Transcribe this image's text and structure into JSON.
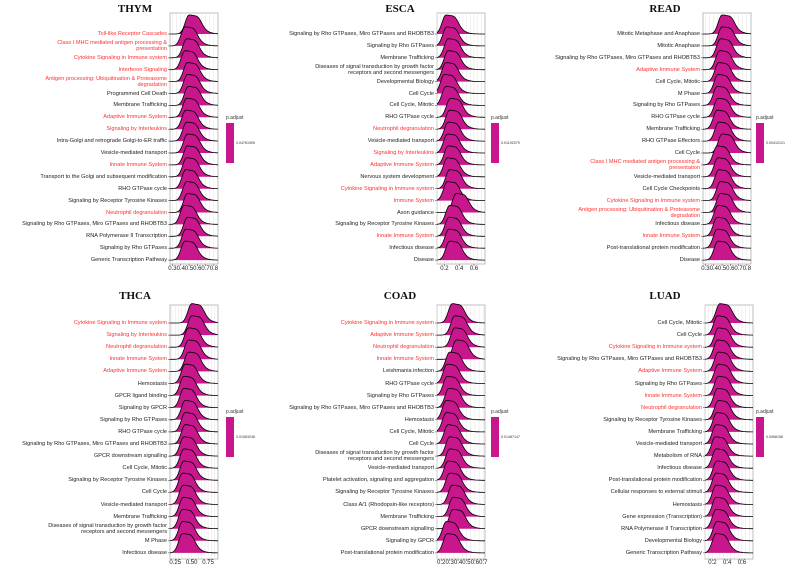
{
  "colors": {
    "fill": "#C8168C",
    "immune_label": "#FF3030",
    "label": "#222222",
    "outline": "#000000"
  },
  "chart_data": [
    {
      "type": "ridgeline",
      "title": "THYM",
      "legend_title": "p.adjust",
      "legend_value": "0.04761905",
      "xlim": [
        0.27,
        0.85
      ],
      "ticks": [
        "0.3",
        "0.4",
        "0.5",
        "0.6",
        "0.7",
        "0.8"
      ],
      "tick_values": [
        0.3,
        0.4,
        0.5,
        0.6,
        0.7,
        0.8
      ],
      "pathways": [
        {
          "name": "Toll-like Receptor Cascades",
          "immune": true,
          "peak": 0.5
        },
        {
          "name": "Class I MHC mediated antigen processing &\npresentation",
          "immune": true,
          "peak": 0.45
        },
        {
          "name": "Cytokine Signaling in Immune system",
          "immune": true,
          "peak": 0.47
        },
        {
          "name": "Interferon Signaling",
          "immune": true,
          "peak": 0.45
        },
        {
          "name": "Antigen processing: Ubiquitination & Proteasome\ndegradation",
          "immune": true,
          "peak": 0.48
        },
        {
          "name": "Programmed Cell Death",
          "immune": false,
          "peak": 0.48
        },
        {
          "name": "Membrane Trafficking",
          "immune": false,
          "peak": 0.49
        },
        {
          "name": "Adaptive Immune System",
          "immune": true,
          "peak": 0.47
        },
        {
          "name": "Signaling by Interleukins",
          "immune": true,
          "peak": 0.46
        },
        {
          "name": "Intra-Golgi and retrograde Golgi-to-ER traffic",
          "immune": false,
          "peak": 0.47
        },
        {
          "name": "Vesicle-mediated transport",
          "immune": false,
          "peak": 0.48
        },
        {
          "name": "Innate Immune System",
          "immune": true,
          "peak": 0.48
        },
        {
          "name": "Transport to the Golgi and subsequent modification",
          "immune": false,
          "peak": 0.47
        },
        {
          "name": "RHO GTPase cycle",
          "immune": false,
          "peak": 0.46
        },
        {
          "name": "Signaling by Receptor Tyrosine Kinases",
          "immune": false,
          "peak": 0.47
        },
        {
          "name": "Neutrophil degranulation",
          "immune": true,
          "peak": 0.48
        },
        {
          "name": "Signaling by Rho GTPases, Miro GTPases and RHOBTB3",
          "immune": false,
          "peak": 0.44
        },
        {
          "name": "RNA Polymerase II Transcription",
          "immune": false,
          "peak": 0.48
        },
        {
          "name": "Signaling by Rho GTPases",
          "immune": false,
          "peak": 0.46
        },
        {
          "name": "Generic Transcription Pathway",
          "immune": false,
          "peak": 0.45
        }
      ]
    },
    {
      "type": "ridgeline",
      "title": "ESCA",
      "legend_title": "p.adjust",
      "legend_value": "0.01192079",
      "xlim": [
        0.1,
        0.75
      ],
      "ticks": [
        "0.2",
        "0.4",
        "0.6"
      ],
      "tick_values": [
        0.2,
        0.4,
        0.6
      ],
      "pathways": [
        {
          "name": "Signaling by Rho GTPases, Miro GTPases and RHOBTB3",
          "immune": false,
          "peak": 0.22
        },
        {
          "name": "Signaling by Rho GTPases",
          "immune": false,
          "peak": 0.23
        },
        {
          "name": "Membrane Trafficking",
          "immune": false,
          "peak": 0.25
        },
        {
          "name": "Diseases of signal transduction by growth factor\nreceptors and second messengers",
          "immune": false,
          "peak": 0.25
        },
        {
          "name": "Developmental Biology",
          "immune": false,
          "peak": 0.22
        },
        {
          "name": "Cell Cycle",
          "immune": false,
          "peak": 0.2
        },
        {
          "name": "Cell Cycle, Mitotic",
          "immune": false,
          "peak": 0.22
        },
        {
          "name": "RHO GTPase cycle",
          "immune": false,
          "peak": 0.28
        },
        {
          "name": "Neutrophil degranulation",
          "immune": true,
          "peak": 0.27
        },
        {
          "name": "Vesicle-mediated transport",
          "immune": false,
          "peak": 0.25
        },
        {
          "name": "Signaling by Interleukins",
          "immune": true,
          "peak": 0.24
        },
        {
          "name": "Adaptive Immune System",
          "immune": true,
          "peak": 0.25
        },
        {
          "name": "Nervous system development",
          "immune": false,
          "peak": 0.24
        },
        {
          "name": "Cytokine Signaling in Immune system",
          "immune": true,
          "peak": 0.27
        },
        {
          "name": "Immune System",
          "immune": true,
          "peak": 0.24
        },
        {
          "name": "Axon guidance",
          "immune": false,
          "peak": 0.36
        },
        {
          "name": "Signaling by Receptor Tyrosine Kinases",
          "immune": false,
          "peak": 0.27
        },
        {
          "name": "Innate Immune System",
          "immune": true,
          "peak": 0.26
        },
        {
          "name": "Infectious disease",
          "immune": false,
          "peak": 0.26
        },
        {
          "name": "Disease",
          "immune": false,
          "peak": 0.27
        }
      ]
    },
    {
      "type": "ridgeline",
      "title": "READ",
      "legend_title": "p.adjust",
      "legend_value": "0.00410121",
      "xlim": [
        0.27,
        0.85
      ],
      "ticks": [
        "0.3",
        "0.4",
        "0.5",
        "0.6",
        "0.7",
        "0.8"
      ],
      "tick_values": [
        0.3,
        0.4,
        0.5,
        0.6,
        0.7,
        0.8
      ],
      "pathways": [
        {
          "name": "Mitotic Metaphase and Anaphase",
          "immune": false,
          "peak": 0.5
        },
        {
          "name": "Mitotic Anaphase",
          "immune": false,
          "peak": 0.5
        },
        {
          "name": "Signaling by Rho GTPases, Miro GTPases and RHOBTB3",
          "immune": false,
          "peak": 0.48
        },
        {
          "name": "Adaptive Immune System",
          "immune": true,
          "peak": 0.47
        },
        {
          "name": "Cell Cycle, Mitotic",
          "immune": false,
          "peak": 0.46
        },
        {
          "name": "M Phase",
          "immune": false,
          "peak": 0.45
        },
        {
          "name": "Signaling by Rho GTPases",
          "immune": false,
          "peak": 0.44
        },
        {
          "name": "RHO GTPase cycle",
          "immune": false,
          "peak": 0.45
        },
        {
          "name": "Membrane Trafficking",
          "immune": false,
          "peak": 0.44
        },
        {
          "name": "RHO GTPase Effectors",
          "immune": false,
          "peak": 0.46
        },
        {
          "name": "Cell Cycle",
          "immune": false,
          "peak": 0.5
        },
        {
          "name": "Class I MHC mediated antigen processing &\npresentation",
          "immune": true,
          "peak": 0.44
        },
        {
          "name": "Vesicle-mediated transport",
          "immune": false,
          "peak": 0.45
        },
        {
          "name": "Cell Cycle Checkpoints",
          "immune": false,
          "peak": 0.46
        },
        {
          "name": "Cytokine Signaling in Immune system",
          "immune": true,
          "peak": 0.48
        },
        {
          "name": "Antigen processing: Ubiquitination & Proteasome\ndegradation",
          "immune": true,
          "peak": 0.48
        },
        {
          "name": "Infectious disease",
          "immune": false,
          "peak": 0.45
        },
        {
          "name": "Innate Immune System",
          "immune": true,
          "peak": 0.44
        },
        {
          "name": "Post-translational protein modification",
          "immune": false,
          "peak": 0.44
        },
        {
          "name": "Disease",
          "immune": false,
          "peak": 0.45
        }
      ]
    },
    {
      "type": "ridgeline",
      "title": "THCA",
      "legend_title": "p.adjust",
      "legend_value": "0.01063246",
      "xlim": [
        0.17,
        0.9
      ],
      "ticks": [
        "0.25",
        "0.50",
        "0.75"
      ],
      "tick_values": [
        0.25,
        0.5,
        0.75
      ],
      "pathways": [
        {
          "name": "Cytokine Signaling in Immune system",
          "immune": true,
          "peak": 0.5
        },
        {
          "name": "Signaling by Interleukins",
          "immune": true,
          "peak": 0.5
        },
        {
          "name": "Neutrophil degranulation",
          "immune": true,
          "peak": 0.45
        },
        {
          "name": "Innate Immune System",
          "immune": true,
          "peak": 0.45
        },
        {
          "name": "Adaptive Immune System",
          "immune": true,
          "peak": 0.45
        },
        {
          "name": "Hemostasis",
          "immune": false,
          "peak": 0.4
        },
        {
          "name": "GPCR ligand binding",
          "immune": false,
          "peak": 0.38
        },
        {
          "name": "Signaling by GPCR",
          "immune": false,
          "peak": 0.38
        },
        {
          "name": "Signaling by Rho GTPases",
          "immune": false,
          "peak": 0.4
        },
        {
          "name": "RHO GTPase cycle",
          "immune": false,
          "peak": 0.4
        },
        {
          "name": "Signaling by Rho GTPases, Miro GTPases and RHOBTB3",
          "immune": false,
          "peak": 0.4
        },
        {
          "name": "GPCR downstream signalling",
          "immune": false,
          "peak": 0.38
        },
        {
          "name": "Cell Cycle, Mitotic",
          "immune": false,
          "peak": 0.38
        },
        {
          "name": "Signaling by Receptor Tyrosine Kinases",
          "immune": false,
          "peak": 0.38
        },
        {
          "name": "Cell Cycle",
          "immune": false,
          "peak": 0.36
        },
        {
          "name": "Vesicle-mediated transport",
          "immune": false,
          "peak": 0.37
        },
        {
          "name": "Membrane Trafficking",
          "immune": false,
          "peak": 0.37
        },
        {
          "name": "Diseases of signal transduction by growth factor\nreceptors and second messengers",
          "immune": false,
          "peak": 0.36
        },
        {
          "name": "M Phase",
          "immune": false,
          "peak": 0.36
        },
        {
          "name": "Infectious disease",
          "immune": false,
          "peak": 0.36
        }
      ]
    },
    {
      "type": "ridgeline",
      "title": "COAD",
      "legend_title": "p.adjust",
      "legend_value": "0.01487147",
      "xlim": [
        0.15,
        0.72
      ],
      "ticks": [
        "0.2",
        "0.3",
        "0.4",
        "0.5",
        "0.6",
        "0.7"
      ],
      "tick_values": [
        0.2,
        0.3,
        0.4,
        0.5,
        0.6,
        0.7
      ],
      "pathways": [
        {
          "name": "Cytokine Signaling in Immune system",
          "immune": true,
          "peak": 0.33
        },
        {
          "name": "Adaptive Immune System",
          "immune": true,
          "peak": 0.36
        },
        {
          "name": "Neutrophil degranulation",
          "immune": true,
          "peak": 0.36
        },
        {
          "name": "Innate Immune System",
          "immune": true,
          "peak": 0.38
        },
        {
          "name": "Leishmania infection",
          "immune": false,
          "peak": 0.3
        },
        {
          "name": "RHO GTPase cycle",
          "immune": false,
          "peak": 0.27
        },
        {
          "name": "Signaling by Rho GTPases",
          "immune": false,
          "peak": 0.27
        },
        {
          "name": "Signaling by Rho GTPases, Miro GTPases and RHOBTB3",
          "immune": false,
          "peak": 0.29
        },
        {
          "name": "Hemostasis",
          "immune": false,
          "peak": 0.26
        },
        {
          "name": "Cell Cycle, Mitotic",
          "immune": false,
          "peak": 0.26
        },
        {
          "name": "Cell Cycle",
          "immune": false,
          "peak": 0.28
        },
        {
          "name": "Diseases of signal transduction by growth factor\nreceptors and second messengers",
          "immune": false,
          "peak": 0.3
        },
        {
          "name": "Vesicle-mediated transport",
          "immune": false,
          "peak": 0.3
        },
        {
          "name": "Platelet activation, signaling and aggregation",
          "immune": false,
          "peak": 0.28
        },
        {
          "name": "Signaling by Receptor Tyrosine Kinases",
          "immune": false,
          "peak": 0.3
        },
        {
          "name": "Class A/1 (Rhodopsin-like receptors)",
          "immune": false,
          "peak": 0.33
        },
        {
          "name": "Membrane Trafficking",
          "immune": false,
          "peak": 0.34
        },
        {
          "name": "GPCR downstream signalling",
          "immune": false,
          "peak": 0.34
        },
        {
          "name": "Signaling by GPCR",
          "immune": false,
          "peak": 0.26
        },
        {
          "name": "Post-translational protein modification",
          "immune": false,
          "peak": 0.27
        }
      ]
    },
    {
      "type": "ridgeline",
      "title": "LUAD",
      "legend_title": "p.adjust",
      "legend_value": "0.0068158",
      "xlim": [
        0.1,
        0.75
      ],
      "ticks": [
        "0.2",
        "0.4",
        "0.6"
      ],
      "tick_values": [
        0.2,
        0.4,
        0.6
      ],
      "pathways": [
        {
          "name": "Cell Cycle, Mitotic",
          "immune": false,
          "peak": 0.3
        },
        {
          "name": "Cell Cycle",
          "immune": false,
          "peak": 0.27
        },
        {
          "name": "Cytokine Signaling in Immune system",
          "immune": true,
          "peak": 0.28
        },
        {
          "name": "Signaling by Rho GTPases, Miro GTPases and RHOBTB3",
          "immune": false,
          "peak": 0.27
        },
        {
          "name": "Adaptive Immune System",
          "immune": true,
          "peak": 0.28
        },
        {
          "name": "Signaling by Rho GTPases",
          "immune": false,
          "peak": 0.28
        },
        {
          "name": "Innate Immune System",
          "immune": true,
          "peak": 0.28
        },
        {
          "name": "Neutrophil degranulation",
          "immune": true,
          "peak": 0.27
        },
        {
          "name": "Signaling by Receptor Tyrosine Kinases",
          "immune": false,
          "peak": 0.28
        },
        {
          "name": "Membrane Trafficking",
          "immune": false,
          "peak": 0.26
        },
        {
          "name": "Vesicle-mediated transport",
          "immune": false,
          "peak": 0.25
        },
        {
          "name": "Metabolism of RNA",
          "immune": false,
          "peak": 0.24
        },
        {
          "name": "Infectious disease",
          "immune": false,
          "peak": 0.25
        },
        {
          "name": "Post-translational protein modification",
          "immune": false,
          "peak": 0.26
        },
        {
          "name": "Cellular responses to external stimuli",
          "immune": false,
          "peak": 0.25
        },
        {
          "name": "Hemostasis",
          "immune": false,
          "peak": 0.25
        },
        {
          "name": "Gene expression (Transcription)",
          "immune": false,
          "peak": 0.25
        },
        {
          "name": "RNA Polymerase II Transcription",
          "immune": false,
          "peak": 0.25
        },
        {
          "name": "Developmental Biology",
          "immune": false,
          "peak": 0.26
        },
        {
          "name": "Generic Transcription Pathway",
          "immune": false,
          "peak": 0.25
        }
      ]
    }
  ]
}
